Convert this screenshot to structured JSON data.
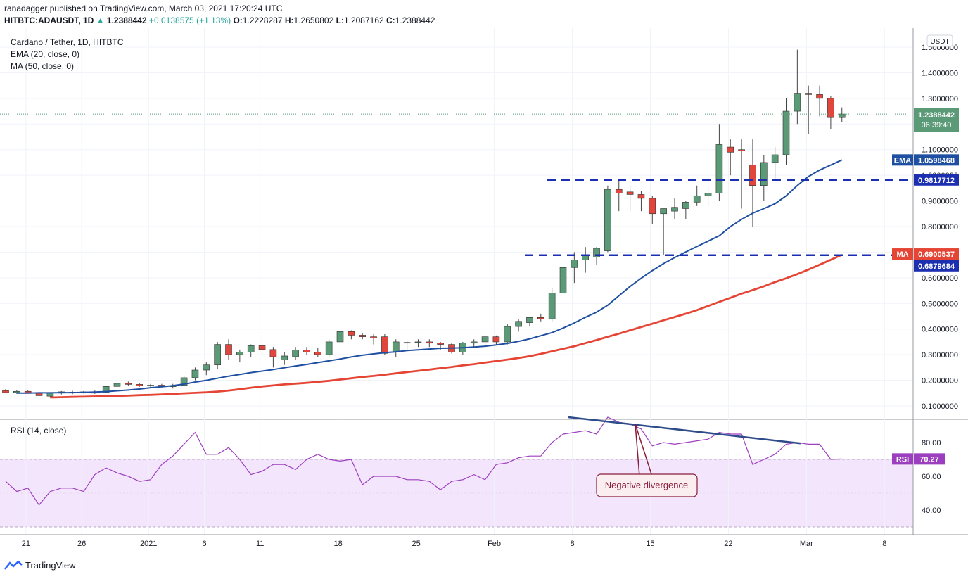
{
  "header": {
    "publisher_line": "ranadagger published on TradingView.com, March 03, 2021 17:20:24 UTC",
    "symbol": "HITBTC:ADAUSDT, 1D",
    "last": "1.2388442",
    "change": "+0.0138575 (+1.13%)",
    "o_label": "O:",
    "o": "1.2228287",
    "h_label": "H:",
    "h": "1.2650802",
    "l_label": "L:",
    "l": "1.2087162",
    "c_label": "C:",
    "c": "1.2388442"
  },
  "legend": {
    "title": "Cardano / Tether, 1D, HITBTC",
    "ema": "EMA (20, close, 0)",
    "ma": "MA (50, close, 0)",
    "rsi": "RSI (14, close)"
  },
  "colors": {
    "up": "#5b9a77",
    "down": "#e0463c",
    "ema": "#1e4fa1",
    "ma": "#e54535",
    "rsi": "#9c3fbf",
    "level": "#1b2fb0",
    "trend": "#2e4b8a",
    "rsi_band": "#f3e5fb"
  },
  "price_axis": {
    "unit": "USDT",
    "ticks": [
      "0.1000000",
      "0.2000000",
      "0.3000000",
      "0.4000000",
      "0.5000000",
      "0.6000000",
      "0.7000000",
      "0.8000000",
      "0.9000000",
      "1.0000000",
      "1.1000000",
      "1.2000000",
      "1.3000000",
      "1.4000000",
      "1.5000000"
    ]
  },
  "rsi_axis": {
    "ticks": [
      "40.00",
      "60.00",
      "80.00"
    ]
  },
  "x_axis": {
    "labels": [
      "21",
      "26",
      "2021",
      "6",
      "11",
      "18",
      "25",
      "Feb",
      "8",
      "15",
      "22",
      "Mar",
      "8"
    ]
  },
  "badges": {
    "price_value": "1.2388442",
    "countdown": "06:39:40",
    "ema_label": "EMA",
    "ema_value": "1.0598468",
    "level_high": "0.9817712",
    "ma_label": "MA",
    "ma_value": "0.6900537",
    "level_low": "0.6879684",
    "rsi_label": "RSI",
    "rsi_value": "70.27"
  },
  "annotation": "Negative divergence",
  "brand": "TradingView",
  "chart_data": {
    "type": "candlestick",
    "title": "Cardano / Tether, 1D, HITBTC",
    "x_start": "2020-12-20",
    "x_end": "2021-03-03",
    "ylim": [
      0,
      1.55
    ],
    "candles": [
      [
        0.16,
        0.166,
        0.15,
        0.152
      ],
      [
        0.152,
        0.162,
        0.147,
        0.157
      ],
      [
        0.157,
        0.16,
        0.148,
        0.151
      ],
      [
        0.151,
        0.156,
        0.134,
        0.14
      ],
      [
        0.138,
        0.152,
        0.132,
        0.15
      ],
      [
        0.15,
        0.158,
        0.145,
        0.155
      ],
      [
        0.154,
        0.159,
        0.146,
        0.153
      ],
      [
        0.153,
        0.158,
        0.148,
        0.155
      ],
      [
        0.155,
        0.16,
        0.147,
        0.15
      ],
      [
        0.152,
        0.18,
        0.15,
        0.176
      ],
      [
        0.176,
        0.193,
        0.17,
        0.188
      ],
      [
        0.188,
        0.195,
        0.178,
        0.184
      ],
      [
        0.184,
        0.19,
        0.174,
        0.178
      ],
      [
        0.178,
        0.186,
        0.17,
        0.181
      ],
      [
        0.181,
        0.186,
        0.172,
        0.175
      ],
      [
        0.175,
        0.186,
        0.168,
        0.18
      ],
      [
        0.18,
        0.215,
        0.176,
        0.21
      ],
      [
        0.21,
        0.25,
        0.2,
        0.24
      ],
      [
        0.24,
        0.27,
        0.22,
        0.26
      ],
      [
        0.26,
        0.35,
        0.245,
        0.34
      ],
      [
        0.34,
        0.36,
        0.28,
        0.3
      ],
      [
        0.3,
        0.32,
        0.27,
        0.31
      ],
      [
        0.31,
        0.34,
        0.29,
        0.335
      ],
      [
        0.335,
        0.345,
        0.3,
        0.32
      ],
      [
        0.32,
        0.33,
        0.25,
        0.292
      ],
      [
        0.28,
        0.31,
        0.26,
        0.295
      ],
      [
        0.292,
        0.33,
        0.28,
        0.318
      ],
      [
        0.318,
        0.33,
        0.3,
        0.31
      ],
      [
        0.31,
        0.325,
        0.29,
        0.3
      ],
      [
        0.3,
        0.36,
        0.29,
        0.35
      ],
      [
        0.35,
        0.4,
        0.34,
        0.39
      ],
      [
        0.39,
        0.395,
        0.36,
        0.376
      ],
      [
        0.376,
        0.385,
        0.36,
        0.37
      ],
      [
        0.37,
        0.38,
        0.34,
        0.365
      ],
      [
        0.37,
        0.38,
        0.3,
        0.305
      ],
      [
        0.31,
        0.36,
        0.29,
        0.35
      ],
      [
        0.345,
        0.355,
        0.32,
        0.348
      ],
      [
        0.348,
        0.36,
        0.33,
        0.35
      ],
      [
        0.35,
        0.36,
        0.33,
        0.345
      ],
      [
        0.345,
        0.35,
        0.32,
        0.34
      ],
      [
        0.34,
        0.345,
        0.305,
        0.31
      ],
      [
        0.31,
        0.35,
        0.3,
        0.345
      ],
      [
        0.345,
        0.36,
        0.33,
        0.35
      ],
      [
        0.35,
        0.375,
        0.34,
        0.37
      ],
      [
        0.37,
        0.375,
        0.34,
        0.35
      ],
      [
        0.35,
        0.42,
        0.34,
        0.41
      ],
      [
        0.41,
        0.44,
        0.39,
        0.43
      ],
      [
        0.425,
        0.445,
        0.41,
        0.445
      ],
      [
        0.445,
        0.46,
        0.43,
        0.44
      ],
      [
        0.44,
        0.56,
        0.43,
        0.54
      ],
      [
        0.54,
        0.66,
        0.52,
        0.64
      ],
      [
        0.64,
        0.7,
        0.58,
        0.67
      ],
      [
        0.67,
        0.72,
        0.62,
        0.69
      ],
      [
        0.68,
        0.72,
        0.65,
        0.715
      ],
      [
        0.705,
        0.96,
        0.7,
        0.945
      ],
      [
        0.945,
        0.98,
        0.86,
        0.93
      ],
      [
        0.935,
        0.96,
        0.86,
        0.925
      ],
      [
        0.925,
        0.94,
        0.86,
        0.91
      ],
      [
        0.91,
        0.92,
        0.81,
        0.85
      ],
      [
        0.85,
        0.87,
        0.69,
        0.87
      ],
      [
        0.86,
        0.91,
        0.83,
        0.875
      ],
      [
        0.87,
        0.9,
        0.83,
        0.895
      ],
      [
        0.895,
        0.96,
        0.88,
        0.92
      ],
      [
        0.92,
        0.96,
        0.88,
        0.93
      ],
      [
        0.93,
        1.2,
        0.9,
        1.12
      ],
      [
        1.11,
        1.14,
        1.0,
        1.09
      ],
      [
        1.1,
        1.14,
        0.87,
        1.095
      ],
      [
        1.04,
        1.14,
        0.8,
        0.96
      ],
      [
        0.96,
        1.08,
        0.9,
        1.05
      ],
      [
        1.05,
        1.11,
        0.98,
        1.08
      ],
      [
        1.08,
        1.3,
        1.04,
        1.25
      ],
      [
        1.25,
        1.49,
        1.2,
        1.32
      ],
      [
        1.32,
        1.35,
        1.16,
        1.315
      ],
      [
        1.315,
        1.35,
        1.23,
        1.3
      ],
      [
        1.3,
        1.31,
        1.18,
        1.225
      ],
      [
        1.225,
        1.265,
        1.209,
        1.239
      ]
    ],
    "ema20": [
      0.15,
      0.15,
      0.151,
      0.151,
      0.152,
      0.152,
      0.153,
      0.154,
      0.156,
      0.159,
      0.162,
      0.166,
      0.171,
      0.175,
      0.179,
      0.185,
      0.193,
      0.2,
      0.208,
      0.216,
      0.223,
      0.23,
      0.236,
      0.242,
      0.249,
      0.256,
      0.262,
      0.269,
      0.276,
      0.283,
      0.291,
      0.298,
      0.303,
      0.308,
      0.311,
      0.316,
      0.319,
      0.322,
      0.325,
      0.326,
      0.327,
      0.33,
      0.333,
      0.338,
      0.344,
      0.352,
      0.362,
      0.374,
      0.386,
      0.404,
      0.424,
      0.446,
      0.466,
      0.493,
      0.53,
      0.566,
      0.598,
      0.628,
      0.655,
      0.679,
      0.701,
      0.722,
      0.743,
      0.764,
      0.8,
      0.828,
      0.852,
      0.87,
      0.889,
      0.92,
      0.96,
      0.995,
      1.02,
      1.04,
      1.06
    ],
    "ma50": [
      0.133,
      0.134,
      0.135,
      0.136,
      0.137,
      0.138,
      0.139,
      0.14,
      0.142,
      0.143,
      0.145,
      0.147,
      0.149,
      0.151,
      0.153,
      0.156,
      0.16,
      0.165,
      0.171,
      0.176,
      0.18,
      0.184,
      0.187,
      0.19,
      0.194,
      0.198,
      0.203,
      0.208,
      0.213,
      0.217,
      0.222,
      0.227,
      0.232,
      0.237,
      0.242,
      0.247,
      0.252,
      0.258,
      0.263,
      0.269,
      0.275,
      0.281,
      0.287,
      0.294,
      0.303,
      0.313,
      0.323,
      0.333,
      0.345,
      0.357,
      0.37,
      0.382,
      0.395,
      0.408,
      0.421,
      0.434,
      0.447,
      0.46,
      0.474,
      0.49,
      0.506,
      0.522,
      0.538,
      0.552,
      0.567,
      0.583,
      0.598,
      0.614,
      0.632,
      0.651,
      0.67,
      0.69
    ],
    "rsi": [
      57,
      51,
      53,
      43,
      51,
      53,
      53,
      51,
      61,
      65,
      62,
      60,
      57,
      58,
      67,
      72,
      79,
      86,
      73,
      73,
      77,
      70,
      61,
      63,
      67,
      67,
      64,
      70,
      73,
      70,
      69,
      70,
      55,
      60,
      60,
      60,
      58,
      58,
      57,
      52,
      57,
      58,
      61,
      58,
      67,
      68,
      71,
      72,
      72,
      80,
      85,
      86,
      87,
      85,
      95,
      92,
      91,
      88,
      78,
      80,
      79,
      80,
      81,
      82,
      86,
      85,
      85,
      67,
      70,
      73,
      79,
      80,
      79,
      79,
      70,
      70.27
    ],
    "levels": [
      0.9817712,
      0.6879684
    ],
    "divergence": {
      "price_highs": [
        "2021-02-08",
        "2021-02-15",
        "2021-02-20"
      ],
      "rsi_trend": [
        95,
        79
      ]
    }
  }
}
